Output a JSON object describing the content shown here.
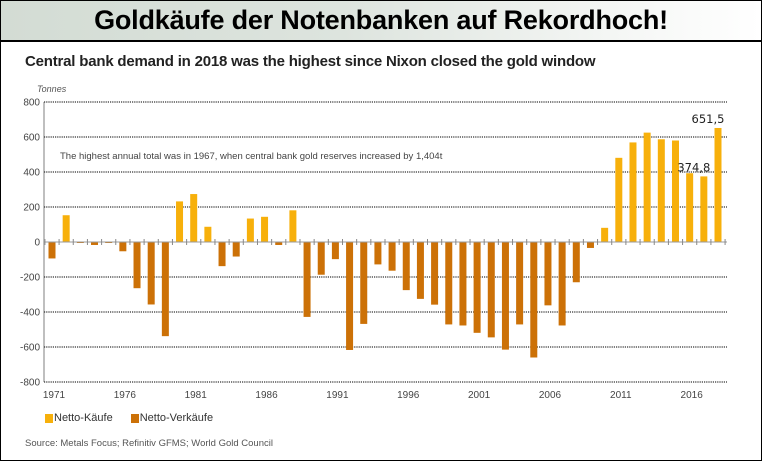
{
  "header": {
    "title": "Goldkäufe der Notenbanken auf Rekordhoch!"
  },
  "colors": {
    "purchase": "#f7b00b",
    "sale": "#cc7107",
    "grid": "#333333",
    "axis": "#aaaaaa",
    "header_bg": "#d3dcd4"
  },
  "chart_data": {
    "type": "bar",
    "title": "Central bank demand in 2018 was the highest since Nixon closed the gold window",
    "ylabel": "Tonnes",
    "xlabel": "",
    "ylim": [
      -800,
      800
    ],
    "yticks": [
      800,
      600,
      400,
      200,
      0,
      -200,
      -400,
      -600,
      -800
    ],
    "xtick_labels": [
      "1971",
      "1976",
      "1981",
      "1986",
      "1991",
      "1996",
      "2001",
      "2006",
      "2011",
      "2016"
    ],
    "grid": true,
    "legend_position": "bottom-left",
    "annotation": "The highest annual total was in 1967, when central bank gold reserves increased by 1,404t",
    "data_labels": [
      {
        "year": 2017,
        "text": "374,8"
      },
      {
        "year": 2018,
        "text": "651,5"
      }
    ],
    "categories": [
      1971,
      1972,
      1973,
      1974,
      1975,
      1976,
      1977,
      1978,
      1979,
      1980,
      1981,
      1982,
      1983,
      1984,
      1985,
      1986,
      1987,
      1988,
      1989,
      1990,
      1991,
      1992,
      1993,
      1994,
      1995,
      1996,
      1997,
      1998,
      1999,
      2000,
      2001,
      2002,
      2003,
      2004,
      2005,
      2006,
      2007,
      2008,
      2009,
      2010,
      2011,
      2012,
      2013,
      2014,
      2015,
      2016,
      2017,
      2018
    ],
    "values": [
      -94,
      153,
      -5,
      -17,
      -5,
      -53,
      -264,
      -357,
      -538,
      232,
      274,
      87,
      -138,
      -83,
      134,
      144,
      -17,
      181,
      -428,
      -187,
      -98,
      -617,
      -468,
      -128,
      -164,
      -275,
      -325,
      -358,
      -471,
      -477,
      -519,
      -545,
      -615,
      -471,
      -660,
      -362,
      -477,
      -230,
      -34,
      81,
      481,
      569,
      625,
      587,
      580,
      393,
      374.8,
      651.5
    ],
    "series": [
      {
        "name": "Netto-Käufe",
        "rule": "value > 0"
      },
      {
        "name": "Netto-Verkäufe",
        "rule": "value < 0"
      }
    ]
  },
  "legend": {
    "items": [
      "Netto-Käufe",
      "Netto-Verkäufe"
    ]
  },
  "source": "Source: Metals Focus; Refinitiv GFMS; World Gold Council"
}
